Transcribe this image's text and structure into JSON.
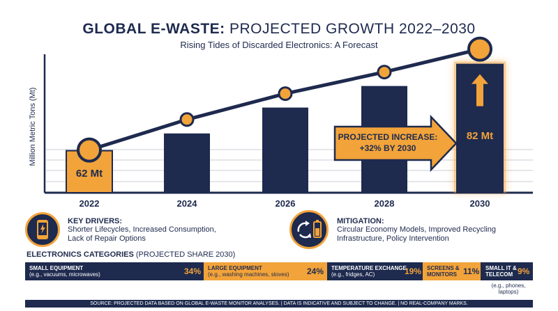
{
  "header": {
    "title_bold": "GLOBAL E-WASTE:",
    "title_rest": "PROJECTED GROWTH 2022–2030",
    "subtitle": "Rising Tides of Discarded Electronics: A Forecast"
  },
  "chart_data": {
    "type": "bar",
    "ylabel": "Million Metric Tons (Mt)",
    "categories": [
      "2022",
      "2024",
      "2026",
      "2028",
      "2030"
    ],
    "values": [
      62,
      66,
      72,
      77,
      82
    ],
    "trend_line": true,
    "value_labels": {
      "2022": "62 Mt",
      "2030": "82 Mt"
    },
    "callout": {
      "line1": "PROJECTED INCREASE:",
      "line2": "+32% BY 2030"
    },
    "highlight_color": "#f2a33a",
    "bar_color": "#1e2a4e"
  },
  "key_drivers": {
    "title": "KEY DRIVERS:",
    "text_line1": "Shorter Lifecycles, Increased Consumption,",
    "text_line2": "Lack of Repair Options",
    "icon": "smartphone-icon"
  },
  "mitigation": {
    "title": "MITIGATION:",
    "text_line1": "Circular Economy Models, Improved Recycling",
    "text_line2": "Infrastructure, Policy Intervention",
    "icon": "recycle-battery-icon"
  },
  "categories": {
    "heading_bold": "ELECTRONICS CATEGORIES",
    "heading_rest": "(PROJECTED SHARE 2030)",
    "items": [
      {
        "name": "SMALL EQUIPMENT",
        "sub": "(e.g., vacuums, microwaves)",
        "pct": "34%"
      },
      {
        "name": "LARGE EQUIPMENT",
        "sub": "(e.g., washing machines, stoves)",
        "pct": "24%"
      },
      {
        "name": "TEMPERATURE EXCHANGE",
        "sub": "(e.g., fridges, AC)",
        "pct": "19%"
      },
      {
        "name_line1": "SCREENS &",
        "name_line2": "MONITORS",
        "pct": "11%"
      },
      {
        "name_line1": "SMALL IT &",
        "name_line2": "TELECOM",
        "pct": "9%",
        "sub_line1": "(e.g., phones,",
        "sub_line2": "laptops)"
      }
    ]
  },
  "footer": "SOURCE: PROJECTED DATA BASED ON GLOBAL E-WASTE MONITOR ANALYSES. | DATA IS INDICATIVE AND SUBJECT TO CHANGE. | NO REAL-COMPANY MARKS.",
  "colors": {
    "navy": "#1e2a4e",
    "orange": "#f2a33a"
  }
}
